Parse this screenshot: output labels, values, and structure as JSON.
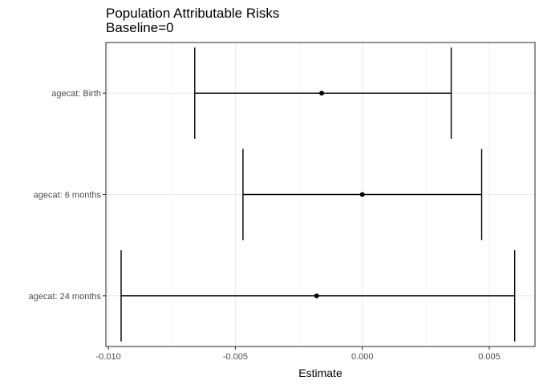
{
  "chart_data": {
    "type": "errorbar",
    "title": "Population Attributable Risks",
    "subtitle": "Baseline=0",
    "xlabel": "Estimate",
    "ylabel": "",
    "xlim": [
      -0.0101,
      0.0068
    ],
    "x_ticks": [
      {
        "value": -0.01,
        "label": "-0.010"
      },
      {
        "value": -0.005,
        "label": "-0.005"
      },
      {
        "value": 0.0,
        "label": "0.000"
      },
      {
        "value": 0.005,
        "label": "0.005"
      }
    ],
    "categories": [
      "agecat: Birth",
      "agecat: 6 months",
      "agecat: 24 months"
    ],
    "points": [
      {
        "category": "agecat: Birth",
        "estimate": -0.0016,
        "lower": -0.0066,
        "upper": 0.0035
      },
      {
        "category": "agecat: 6 months",
        "estimate": 0.0,
        "lower": -0.0047,
        "upper": 0.0047
      },
      {
        "category": "agecat: 24 months",
        "estimate": -0.0018,
        "lower": -0.0095,
        "upper": 0.006
      }
    ],
    "grid": true,
    "point_color": "#000000"
  }
}
